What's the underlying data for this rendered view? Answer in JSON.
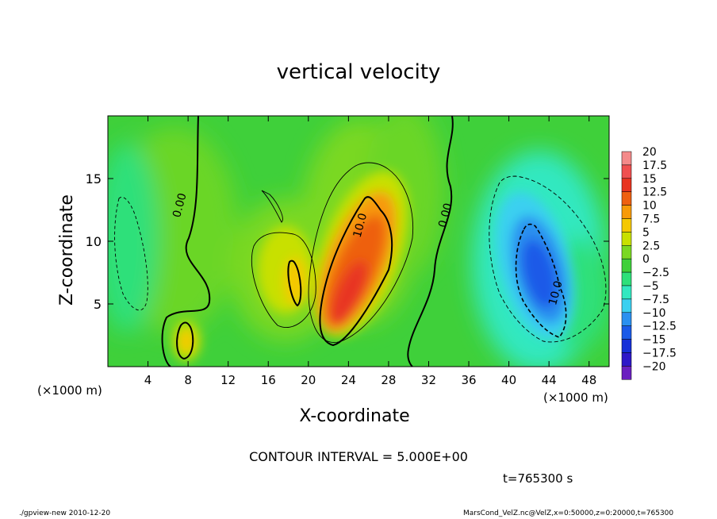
{
  "title": "vertical velocity",
  "footer": {
    "left": "./gpview-new  2010-12-20",
    "right": "MarsCond_VelZ.nc@VelZ,x=0:50000,z=0:20000,t=765300"
  },
  "contour_interval_text": "CONTOUR INTERVAL = 5.000E+00",
  "time_text": "t=765300 s",
  "x_unit_left": "(×1000 m)",
  "x_unit_right": "(×1000 m)",
  "chart_data": {
    "type": "heatmap",
    "title": "vertical velocity",
    "xlabel": "X-coordinate",
    "ylabel": "Z-coordinate",
    "xlim": [
      0,
      50
    ],
    "ylim": [
      0,
      20
    ],
    "x_ticks": [
      "4",
      "8",
      "12",
      "16",
      "20",
      "24",
      "28",
      "32",
      "36",
      "40",
      "44",
      "48"
    ],
    "x_tick_values": [
      4,
      8,
      12,
      16,
      20,
      24,
      28,
      32,
      36,
      40,
      44,
      48
    ],
    "y_ticks": [
      "5",
      "10",
      "15"
    ],
    "y_tick_values": [
      5,
      10,
      15
    ],
    "contour_labels": [
      {
        "text": "0.00",
        "x": 7.5,
        "z": 12.8
      },
      {
        "text": "10.0",
        "x": 25.5,
        "z": 11.2
      },
      {
        "text": "0.00",
        "x": 34.0,
        "z": 12.0
      },
      {
        "text": "10.0",
        "x": 45.0,
        "z": 5.8
      }
    ],
    "colorbar": {
      "levels": [
        "20",
        "17.5",
        "15",
        "12.5",
        "10",
        "7.5",
        "5",
        "2.5",
        "0",
        "−2.5",
        "−5",
        "−7.5",
        "−10",
        "−12.5",
        "−15",
        "−17.5",
        "−20"
      ],
      "colors": [
        "#f48a8a",
        "#f05050",
        "#e83420",
        "#ee6010",
        "#f79a08",
        "#f5c800",
        "#c8e000",
        "#7ad822",
        "#3fd03a",
        "#2ee07a",
        "#32e8c0",
        "#3ad0f0",
        "#2a90f0",
        "#1a5ae8",
        "#1630d8",
        "#2e18c8",
        "#6a20c0"
      ]
    },
    "features": [
      {
        "kind": "updraft",
        "x": 24.5,
        "z": 7.5,
        "peak": 15
      },
      {
        "kind": "updraft",
        "x": 8.0,
        "z": 2.2,
        "peak": 8
      },
      {
        "kind": "updraft",
        "x": 18.5,
        "z": 6.5,
        "peak": 8
      },
      {
        "kind": "downdraft",
        "x": 43.0,
        "z": 7.0,
        "peak": -12
      },
      {
        "kind": "downdraft",
        "x": 3.0,
        "z": 8.0,
        "peak": -3
      }
    ]
  }
}
